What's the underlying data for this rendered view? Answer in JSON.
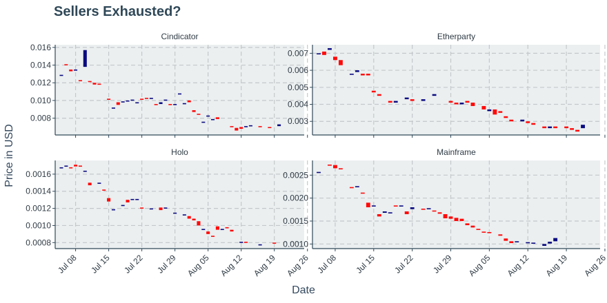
{
  "title": "Sellers Exhausted?",
  "xlabel": "Date",
  "ylabel": "Price in USD",
  "colors": {
    "up": "#0a0a80",
    "down": "#ff0a0a",
    "panel_bg": "#ebeff0",
    "grid": "#c4c8ca",
    "axis": "#2f4858"
  },
  "chart_data": [
    {
      "type": "candlestick",
      "name": "Cindicator",
      "x_ticks": [
        "Jul 08",
        "Jul 15",
        "Jul 22",
        "Jul 29",
        "Aug 05",
        "Aug 12",
        "Aug 19",
        "Aug 26"
      ],
      "y_ticks": [
        "0.008",
        "0.010",
        "0.012",
        "0.014",
        "0.016"
      ],
      "y_tick_values": [
        0.008,
        0.01,
        0.012,
        0.014,
        0.016
      ],
      "ylim": [
        0.0061,
        0.0163
      ],
      "start": "Jul 05",
      "days": 51,
      "opens": [
        0.0128,
        0.0141,
        0.0135,
        0.0134,
        0.0123,
        0.0138,
        0.0122,
        0.012,
        0.0119,
        0.0102,
        0.0091,
        0.0098,
        0.0099,
        0.01,
        0.01,
        0.0097,
        0.0102,
        0.0103,
        0.0102,
        0.0096,
        0.0096,
        0.01,
        0.0096,
        0.0095,
        0.0107,
        0.0096,
        0.01,
        0.0089,
        0.0085,
        0.0075,
        0.0082,
        0.0078,
        0.0081,
        0.0071,
        0.0069,
        0.007,
        0.007,
        0.0071,
        0.0071,
        0.007,
        0.0071
      ],
      "closes": [
        0.0129,
        0.014,
        0.0133,
        0.0135,
        0.0122,
        0.0157,
        0.0121,
        0.0118,
        0.0118,
        0.0101,
        0.0092,
        0.0095,
        0.0099,
        0.01,
        0.0101,
        0.0098,
        0.0101,
        0.0102,
        0.0103,
        0.0095,
        0.0098,
        0.0101,
        0.0095,
        0.0096,
        0.0108,
        0.0097,
        0.0098,
        0.0087,
        0.0084,
        0.0076,
        0.0083,
        0.0079,
        0.0079,
        0.007,
        0.0066,
        0.0068,
        0.0071,
        0.0072,
        0.007,
        0.0069,
        0.0073
      ],
      "day_offsets": [
        0,
        1,
        2,
        3,
        4,
        5,
        6,
        7,
        8,
        10,
        11,
        12,
        13,
        14,
        15,
        16,
        17,
        18,
        19,
        20,
        21,
        22,
        23,
        24,
        25,
        26,
        27,
        28,
        29,
        30,
        31,
        32,
        33,
        36,
        37,
        38,
        39,
        40,
        42,
        44,
        46
      ]
    },
    {
      "type": "candlestick",
      "name": "Etherparty",
      "x_ticks": [
        "Jul 08",
        "Jul 15",
        "Jul 22",
        "Jul 29",
        "Aug 05",
        "Aug 12",
        "Aug 19",
        "Aug 26"
      ],
      "y_ticks": [
        "0.003",
        "0.004",
        "0.005",
        "0.006",
        "0.007"
      ],
      "y_tick_values": [
        0.003,
        0.004,
        0.005,
        0.006,
        0.007
      ],
      "ylim": [
        0.0022,
        0.0075
      ],
      "start": "Jul 05",
      "days": 51,
      "opens": [
        0.007,
        0.0071,
        0.0072,
        0.0068,
        0.0066,
        0.0058,
        0.0059,
        0.0058,
        0.0058,
        0.0048,
        0.0046,
        0.0042,
        0.0041,
        0.0043,
        0.0043,
        0.0042,
        0.0045,
        0.0042,
        0.0041,
        0.004,
        0.0042,
        0.0041,
        0.0039,
        0.0036,
        0.0037,
        0.0036,
        0.0033,
        0.0031,
        0.003,
        0.003,
        0.0029,
        0.0027,
        0.0026,
        0.0027,
        0.0027,
        0.0026,
        0.0025,
        0.0026
      ],
      "closes": [
        0.007,
        0.0069,
        0.0073,
        0.0066,
        0.0063,
        0.0058,
        0.006,
        0.0057,
        0.0057,
        0.0047,
        0.0045,
        0.0041,
        0.0042,
        0.0044,
        0.0042,
        0.0043,
        0.0046,
        0.0041,
        0.004,
        0.0041,
        0.0041,
        0.0039,
        0.0037,
        0.0037,
        0.0034,
        0.0035,
        0.0032,
        0.003,
        0.0031,
        0.0029,
        0.0028,
        0.0026,
        0.0027,
        0.0026,
        0.0026,
        0.0025,
        0.0024,
        0.0028
      ],
      "day_offsets": [
        0,
        1,
        2,
        3,
        4,
        6,
        7,
        8,
        9,
        10,
        11,
        13,
        14,
        16,
        17,
        19,
        21,
        24,
        25,
        26,
        27,
        28,
        30,
        31,
        32,
        33,
        34,
        35,
        37,
        38,
        39,
        41,
        42,
        43,
        45,
        46,
        47,
        48
      ]
    },
    {
      "type": "candlestick",
      "name": "Holo",
      "x_ticks": [
        "Jul 08",
        "Jul 15",
        "Jul 22",
        "Jul 29",
        "Aug 05",
        "Aug 12",
        "Aug 19",
        "Aug 26"
      ],
      "y_ticks": [
        "0.0008",
        "0.0010",
        "0.0012",
        "0.0014",
        "0.0016"
      ],
      "y_tick_values": [
        0.0008,
        0.001,
        0.0012,
        0.0014,
        0.0016
      ],
      "ylim": [
        0.00073,
        0.00176
      ],
      "start": "Jul 05",
      "days": 51,
      "opens": [
        0.00167,
        0.00169,
        0.00168,
        0.00171,
        0.0017,
        0.00163,
        0.0015,
        0.00149,
        0.00142,
        0.00132,
        0.00118,
        0.00123,
        0.0013,
        0.0013,
        0.0013,
        0.00121,
        0.00119,
        0.00121,
        0.0012,
        0.00114,
        0.00112,
        0.00111,
        0.00108,
        0.00105,
        0.00095,
        0.00093,
        0.00088,
        0.00099,
        0.00095,
        0.00098,
        0.00095,
        0.0008,
        0.00081,
        0.00077,
        0.0008
      ],
      "closes": [
        0.00168,
        0.0017,
        0.00167,
        0.00169,
        0.00169,
        0.00164,
        0.00147,
        0.0015,
        0.00141,
        0.00128,
        0.00119,
        0.00124,
        0.00127,
        0.00131,
        0.00131,
        0.0012,
        0.0012,
        0.00118,
        0.00121,
        0.00115,
        0.00113,
        0.00108,
        0.00106,
        0.001,
        0.00096,
        0.0009,
        0.00087,
        0.00095,
        0.00096,
        0.00097,
        0.00093,
        0.00081,
        0.0008,
        0.00078,
        0.00079
      ],
      "day_offsets": [
        0,
        1,
        2,
        3,
        4,
        5,
        6,
        8,
        9,
        10,
        11,
        13,
        14,
        15,
        16,
        17,
        19,
        21,
        22,
        24,
        26,
        27,
        28,
        29,
        30,
        31,
        32,
        33,
        34,
        35,
        36,
        38,
        39,
        42,
        45
      ]
    },
    {
      "type": "candlestick",
      "name": "Mainframe",
      "x_ticks": [
        "Jul 08",
        "Jul 15",
        "Jul 22",
        "Jul 29",
        "Aug 05",
        "Aug 12",
        "Aug 19",
        "Aug 26"
      ],
      "y_ticks": [
        "0.0010",
        "0.0015",
        "0.0020",
        "0.0025"
      ],
      "y_tick_values": [
        0.001,
        0.0015,
        0.002,
        0.0025
      ],
      "ylim": [
        0.0009,
        0.00282
      ],
      "start": "Jul 05",
      "days": 51,
      "opens": [
        0.00255,
        0.00273,
        0.00272,
        0.00265,
        0.00224,
        0.00225,
        0.00212,
        0.0019,
        0.00183,
        0.00165,
        0.00168,
        0.00168,
        0.00184,
        0.00183,
        0.00171,
        0.00176,
        0.00177,
        0.00177,
        0.00173,
        0.00169,
        0.00165,
        0.0016,
        0.00157,
        0.00155,
        0.00145,
        0.0014,
        0.00133,
        0.00127,
        0.00126,
        0.00121,
        0.00112,
        0.00106,
        0.00104,
        0.00103,
        0.00102,
        0.00096,
        0.00101,
        0.00106
      ],
      "closes": [
        0.00257,
        0.00272,
        0.00265,
        0.00264,
        0.00223,
        0.00226,
        0.0021,
        0.0018,
        0.00184,
        0.0016,
        0.00171,
        0.00169,
        0.00183,
        0.00184,
        0.00165,
        0.0018,
        0.00176,
        0.00178,
        0.00171,
        0.00166,
        0.00156,
        0.00155,
        0.0015,
        0.0015,
        0.00141,
        0.00136,
        0.00131,
        0.00126,
        0.00125,
        0.00118,
        0.00107,
        0.00102,
        0.00106,
        0.00104,
        0.00103,
        0.001,
        0.00105,
        0.00113
      ],
      "day_offsets": [
        0,
        2,
        3,
        4,
        6,
        7,
        8,
        9,
        10,
        11,
        12,
        13,
        14,
        15,
        16,
        17,
        19,
        20,
        21,
        22,
        23,
        24,
        25,
        26,
        27,
        28,
        29,
        30,
        31,
        33,
        34,
        35,
        36,
        38,
        39,
        41,
        42,
        43
      ]
    }
  ]
}
